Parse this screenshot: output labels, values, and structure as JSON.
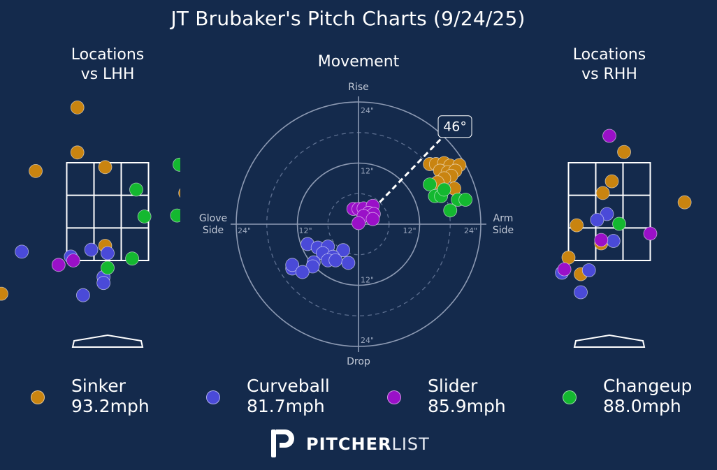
{
  "title": "JT Brubaker's Pitch Charts (9/24/25)",
  "chart_data": {
    "type": "scatter",
    "pitch_types": [
      {
        "name": "Sinker",
        "speed": "93.2mph",
        "color": "#c98410"
      },
      {
        "name": "Curveball",
        "speed": "81.7mph",
        "color": "#4a4ad8"
      },
      {
        "name": "Slider",
        "speed": "85.9mph",
        "color": "#9a10c8"
      },
      {
        "name": "Changeup",
        "speed": "88.0mph",
        "color": "#14b830"
      }
    ],
    "locations_lhh": {
      "title": "Locations\nvs LHH",
      "x_unit": "zone-widths",
      "points": [
        {
          "type": "Sinker",
          "x": -0.37,
          "y": 4.13
        },
        {
          "type": "Sinker",
          "x": -0.37,
          "y": 3.21
        },
        {
          "type": "Sinker",
          "x": -0.03,
          "y": 2.91
        },
        {
          "type": "Sinker",
          "x": -0.88,
          "y": 2.83
        },
        {
          "type": "Sinker",
          "x": -2.1,
          "y": 2.83
        },
        {
          "type": "Sinker",
          "x": -1.88,
          "y": 2.76
        },
        {
          "type": "Sinker",
          "x": 0.95,
          "y": 2.38
        },
        {
          "type": "Sinker",
          "x": -2.4,
          "y": 2.38
        },
        {
          "type": "Sinker",
          "x": -1.65,
          "y": 2.3
        },
        {
          "type": "Sinker",
          "x": -0.03,
          "y": 1.3
        },
        {
          "type": "Sinker",
          "x": -1.3,
          "y": 0.32
        },
        {
          "type": "Curveball",
          "x": 1.35,
          "y": 3.14
        },
        {
          "type": "Curveball",
          "x": 2.18,
          "y": 2.12
        },
        {
          "type": "Curveball",
          "x": 1.35,
          "y": 1.28
        },
        {
          "type": "Curveball",
          "x": -1.05,
          "y": 1.18
        },
        {
          "type": "Curveball",
          "x": -0.2,
          "y": 1.22
        },
        {
          "type": "Curveball",
          "x": 0.0,
          "y": 1.15
        },
        {
          "type": "Curveball",
          "x": -0.45,
          "y": 1.08
        },
        {
          "type": "Curveball",
          "x": -1.85,
          "y": 0.66
        },
        {
          "type": "Curveball",
          "x": -0.05,
          "y": 0.66
        },
        {
          "type": "Curveball",
          "x": -0.05,
          "y": 0.54
        },
        {
          "type": "Curveball",
          "x": -0.3,
          "y": 0.29
        },
        {
          "type": "Slider",
          "x": 0.98,
          "y": 2.1
        },
        {
          "type": "Slider",
          "x": -0.42,
          "y": 1.0
        },
        {
          "type": "Slider",
          "x": -0.6,
          "y": 0.91
        },
        {
          "type": "Changeup",
          "x": 0.88,
          "y": 2.96
        },
        {
          "type": "Changeup",
          "x": 0.35,
          "y": 2.45
        },
        {
          "type": "Changeup",
          "x": 0.85,
          "y": 1.92
        },
        {
          "type": "Changeup",
          "x": 0.45,
          "y": 1.9
        },
        {
          "type": "Changeup",
          "x": 2.0,
          "y": 1.51
        },
        {
          "type": "Changeup",
          "x": 0.3,
          "y": 1.04
        },
        {
          "type": "Changeup",
          "x": 0.0,
          "y": 0.85
        }
      ]
    },
    "movement": {
      "title": "Movement",
      "axis_labels": {
        "top": "Rise",
        "bottom": "Drop",
        "left": "Glove\nSide",
        "right": "Arm\nSide"
      },
      "ring_labels": [
        "12\"",
        "24\""
      ],
      "rmax_inches": 24,
      "arm_angle_label": "46°",
      "arm_angle_deg": 46,
      "points": [
        {
          "type": "Sinker",
          "x": 14.0,
          "y": 11.8
        },
        {
          "type": "Sinker",
          "x": 15.2,
          "y": 11.8
        },
        {
          "type": "Sinker",
          "x": 16.8,
          "y": 12.0
        },
        {
          "type": "Sinker",
          "x": 18.0,
          "y": 11.5
        },
        {
          "type": "Sinker",
          "x": 19.8,
          "y": 11.6
        },
        {
          "type": "Sinker",
          "x": 16.0,
          "y": 10.5
        },
        {
          "type": "Sinker",
          "x": 17.5,
          "y": 10.2
        },
        {
          "type": "Sinker",
          "x": 19.0,
          "y": 10.5
        },
        {
          "type": "Sinker",
          "x": 18.2,
          "y": 9.5
        },
        {
          "type": "Sinker",
          "x": 16.8,
          "y": 9.0
        },
        {
          "type": "Sinker",
          "x": 18.8,
          "y": 7.0
        },
        {
          "type": "Sinker",
          "x": 15.5,
          "y": 8.2
        },
        {
          "type": "Curveball",
          "x": -10.0,
          "y": -3.9
        },
        {
          "type": "Curveball",
          "x": -8.0,
          "y": -4.6
        },
        {
          "type": "Curveball",
          "x": -6.0,
          "y": -4.4
        },
        {
          "type": "Curveball",
          "x": -3.0,
          "y": -5.1
        },
        {
          "type": "Curveball",
          "x": -7.0,
          "y": -5.7
        },
        {
          "type": "Curveball",
          "x": -5.0,
          "y": -6.4
        },
        {
          "type": "Curveball",
          "x": -6.0,
          "y": -7.1
        },
        {
          "type": "Curveball",
          "x": -4.5,
          "y": -7.1
        },
        {
          "type": "Curveball",
          "x": -8.8,
          "y": -7.5
        },
        {
          "type": "Curveball",
          "x": -9.0,
          "y": -8.3
        },
        {
          "type": "Curveball",
          "x": -2.0,
          "y": -7.6
        },
        {
          "type": "Curveball",
          "x": -13.0,
          "y": -8.7
        },
        {
          "type": "Curveball",
          "x": -13.0,
          "y": -8.0
        },
        {
          "type": "Curveball",
          "x": -11.0,
          "y": -9.4
        },
        {
          "type": "Slider",
          "x": -1.0,
          "y": 3.0
        },
        {
          "type": "Slider",
          "x": 0.0,
          "y": 3.0
        },
        {
          "type": "Slider",
          "x": 1.0,
          "y": 3.1
        },
        {
          "type": "Slider",
          "x": 2.8,
          "y": 3.6
        },
        {
          "type": "Slider",
          "x": 2.0,
          "y": 2.2
        },
        {
          "type": "Slider",
          "x": 3.0,
          "y": 2.0
        },
        {
          "type": "Slider",
          "x": 1.0,
          "y": 1.6
        },
        {
          "type": "Slider",
          "x": 2.8,
          "y": 1.0
        },
        {
          "type": "Slider",
          "x": 0.0,
          "y": 0.2
        },
        {
          "type": "Changeup",
          "x": 14.0,
          "y": 7.8
        },
        {
          "type": "Changeup",
          "x": 15.0,
          "y": 5.5
        },
        {
          "type": "Changeup",
          "x": 16.2,
          "y": 5.5
        },
        {
          "type": "Changeup",
          "x": 16.8,
          "y": 6.8
        },
        {
          "type": "Changeup",
          "x": 19.5,
          "y": 4.8
        },
        {
          "type": "Changeup",
          "x": 21.0,
          "y": 4.8
        },
        {
          "type": "Changeup",
          "x": 18.0,
          "y": 2.7
        }
      ]
    },
    "locations_rhh": {
      "title": "Locations\nvs RHH",
      "x_unit": "zone-widths",
      "points": [
        {
          "type": "Sinker",
          "x": 0.18,
          "y": 3.22
        },
        {
          "type": "Sinker",
          "x": 0.03,
          "y": 2.62
        },
        {
          "type": "Sinker",
          "x": -0.08,
          "y": 2.38
        },
        {
          "type": "Sinker",
          "x": -1.3,
          "y": 2.3
        },
        {
          "type": "Sinker",
          "x": 0.92,
          "y": 2.19
        },
        {
          "type": "Sinker",
          "x": 1.7,
          "y": 1.71
        },
        {
          "type": "Sinker",
          "x": -0.4,
          "y": 1.72
        },
        {
          "type": "Sinker",
          "x": -2.3,
          "y": 1.73
        },
        {
          "type": "Sinker",
          "x": -0.1,
          "y": 1.35
        },
        {
          "type": "Sinker",
          "x": -1.45,
          "y": 1.42
        },
        {
          "type": "Sinker",
          "x": -1.1,
          "y": 1.18
        },
        {
          "type": "Sinker",
          "x": -0.5,
          "y": 1.06
        },
        {
          "type": "Sinker",
          "x": -0.35,
          "y": 0.72
        },
        {
          "type": "Curveball",
          "x": -0.03,
          "y": 1.95
        },
        {
          "type": "Curveball",
          "x": -0.15,
          "y": 1.83
        },
        {
          "type": "Curveball",
          "x": 0.05,
          "y": 1.4
        },
        {
          "type": "Curveball",
          "x": -1.2,
          "y": 1.13
        },
        {
          "type": "Curveball",
          "x": -2.15,
          "y": 0.79
        },
        {
          "type": "Curveball",
          "x": -0.25,
          "y": 0.8
        },
        {
          "type": "Curveball",
          "x": -0.58,
          "y": 0.75
        },
        {
          "type": "Curveball",
          "x": -0.35,
          "y": 0.35
        },
        {
          "type": "Curveball",
          "x": -2.1,
          "y": 0.08
        },
        {
          "type": "Slider",
          "x": 0.0,
          "y": 3.55
        },
        {
          "type": "Slider",
          "x": -1.4,
          "y": 2.55
        },
        {
          "type": "Slider",
          "x": -1.65,
          "y": 2.15
        },
        {
          "type": "Slider",
          "x": 0.5,
          "y": 1.55
        },
        {
          "type": "Slider",
          "x": -0.1,
          "y": 1.42
        },
        {
          "type": "Slider",
          "x": -1.75,
          "y": 1.35
        },
        {
          "type": "Slider",
          "x": -2.3,
          "y": 1.2
        },
        {
          "type": "Slider",
          "x": -1.3,
          "y": 1.04
        },
        {
          "type": "Slider",
          "x": -2.3,
          "y": 0.93
        },
        {
          "type": "Slider",
          "x": -0.55,
          "y": 0.82
        },
        {
          "type": "Slider",
          "x": -1.5,
          "y": 0.62
        },
        {
          "type": "Slider",
          "x": -2.3,
          "y": 0.44
        },
        {
          "type": "Changeup",
          "x": 0.12,
          "y": 1.75
        }
      ]
    }
  },
  "legend": {
    "items": [
      {
        "name": "Sinker",
        "speed": "93.2mph"
      },
      {
        "name": "Curveball",
        "speed": "81.7mph"
      },
      {
        "name": "Slider",
        "speed": "85.9mph"
      },
      {
        "name": "Changeup",
        "speed": "88.0mph"
      }
    ]
  },
  "logo": {
    "part1": "PITCHER",
    "part2": "LIST",
    "icon": "pitcherlist-p-logo"
  }
}
